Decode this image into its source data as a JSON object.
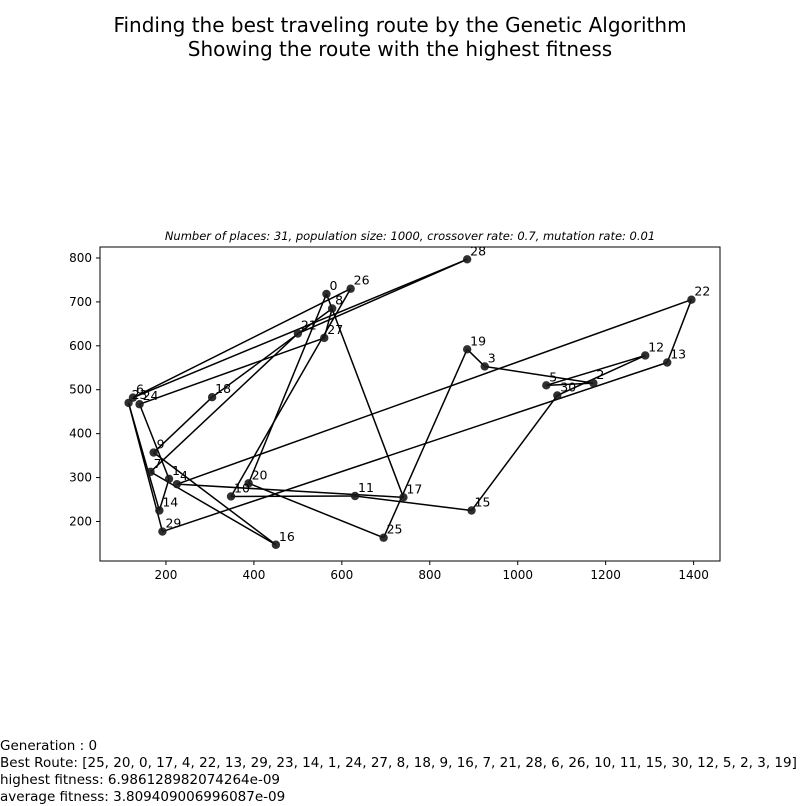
{
  "header": {
    "title_line1": "Finding the best traveling route by the Genetic Algorithm",
    "title_line2": "Showing the route with the highest fitness"
  },
  "chart_data": {
    "type": "line",
    "subtitle": "Number of places: 31, population size: 1000, crossover rate: 0.7, mutation rate: 0.01",
    "xlim": [
      50,
      1460
    ],
    "ylim": [
      110,
      825
    ],
    "xticks": [
      200,
      400,
      600,
      800,
      1000,
      1200,
      1400
    ],
    "yticks": [
      200,
      300,
      400,
      500,
      600,
      700,
      800
    ],
    "grid": false,
    "series_color": "#000000",
    "points": [
      {
        "label": "0",
        "x": 565,
        "y": 718
      },
      {
        "label": "1",
        "x": 207,
        "y": 297
      },
      {
        "label": "2",
        "x": 1172,
        "y": 515
      },
      {
        "label": "3",
        "x": 925,
        "y": 553
      },
      {
        "label": "4",
        "x": 225,
        "y": 285
      },
      {
        "label": "5",
        "x": 1065,
        "y": 510
      },
      {
        "label": "6",
        "x": 125,
        "y": 482
      },
      {
        "label": "7",
        "x": 165,
        "y": 313
      },
      {
        "label": "8",
        "x": 578,
        "y": 685
      },
      {
        "label": "9",
        "x": 172,
        "y": 357
      },
      {
        "label": "10",
        "x": 348,
        "y": 257
      },
      {
        "label": "11",
        "x": 630,
        "y": 258
      },
      {
        "label": "12",
        "x": 1290,
        "y": 578
      },
      {
        "label": "13",
        "x": 1340,
        "y": 562
      },
      {
        "label": "14",
        "x": 185,
        "y": 225
      },
      {
        "label": "15",
        "x": 895,
        "y": 225
      },
      {
        "label": "16",
        "x": 450,
        "y": 147
      },
      {
        "label": "17",
        "x": 740,
        "y": 255
      },
      {
        "label": "18",
        "x": 305,
        "y": 483
      },
      {
        "label": "19",
        "x": 885,
        "y": 592
      },
      {
        "label": "20",
        "x": 388,
        "y": 287
      },
      {
        "label": "21",
        "x": 500,
        "y": 628
      },
      {
        "label": "22",
        "x": 1395,
        "y": 705
      },
      {
        "label": "23",
        "x": 115,
        "y": 470
      },
      {
        "label": "24",
        "x": 140,
        "y": 467
      },
      {
        "label": "25",
        "x": 695,
        "y": 163
      },
      {
        "label": "26",
        "x": 620,
        "y": 730
      },
      {
        "label": "27",
        "x": 560,
        "y": 618
      },
      {
        "label": "28",
        "x": 885,
        "y": 797
      },
      {
        "label": "29",
        "x": 192,
        "y": 177
      },
      {
        "label": "30",
        "x": 1090,
        "y": 487
      }
    ],
    "route": [
      25,
      20,
      0,
      17,
      4,
      22,
      13,
      29,
      23,
      14,
      1,
      24,
      27,
      8,
      18,
      9,
      16,
      7,
      21,
      28,
      6,
      26,
      10,
      11,
      15,
      30,
      12,
      5,
      2,
      3,
      19,
      25
    ]
  },
  "info": {
    "generation": "Generation : 0",
    "best_route": "Best Route: [25, 20, 0, 17, 4, 22, 13, 29, 23, 14, 1, 24, 27, 8, 18, 9, 16, 7, 21, 28, 6, 26, 10, 11, 15, 30, 12, 5, 2, 3, 19]",
    "highest_fitness": "highest fitness: 6.986128982074264e-09",
    "average_fitness": "average fitness: 3.809409006996087e-09"
  }
}
